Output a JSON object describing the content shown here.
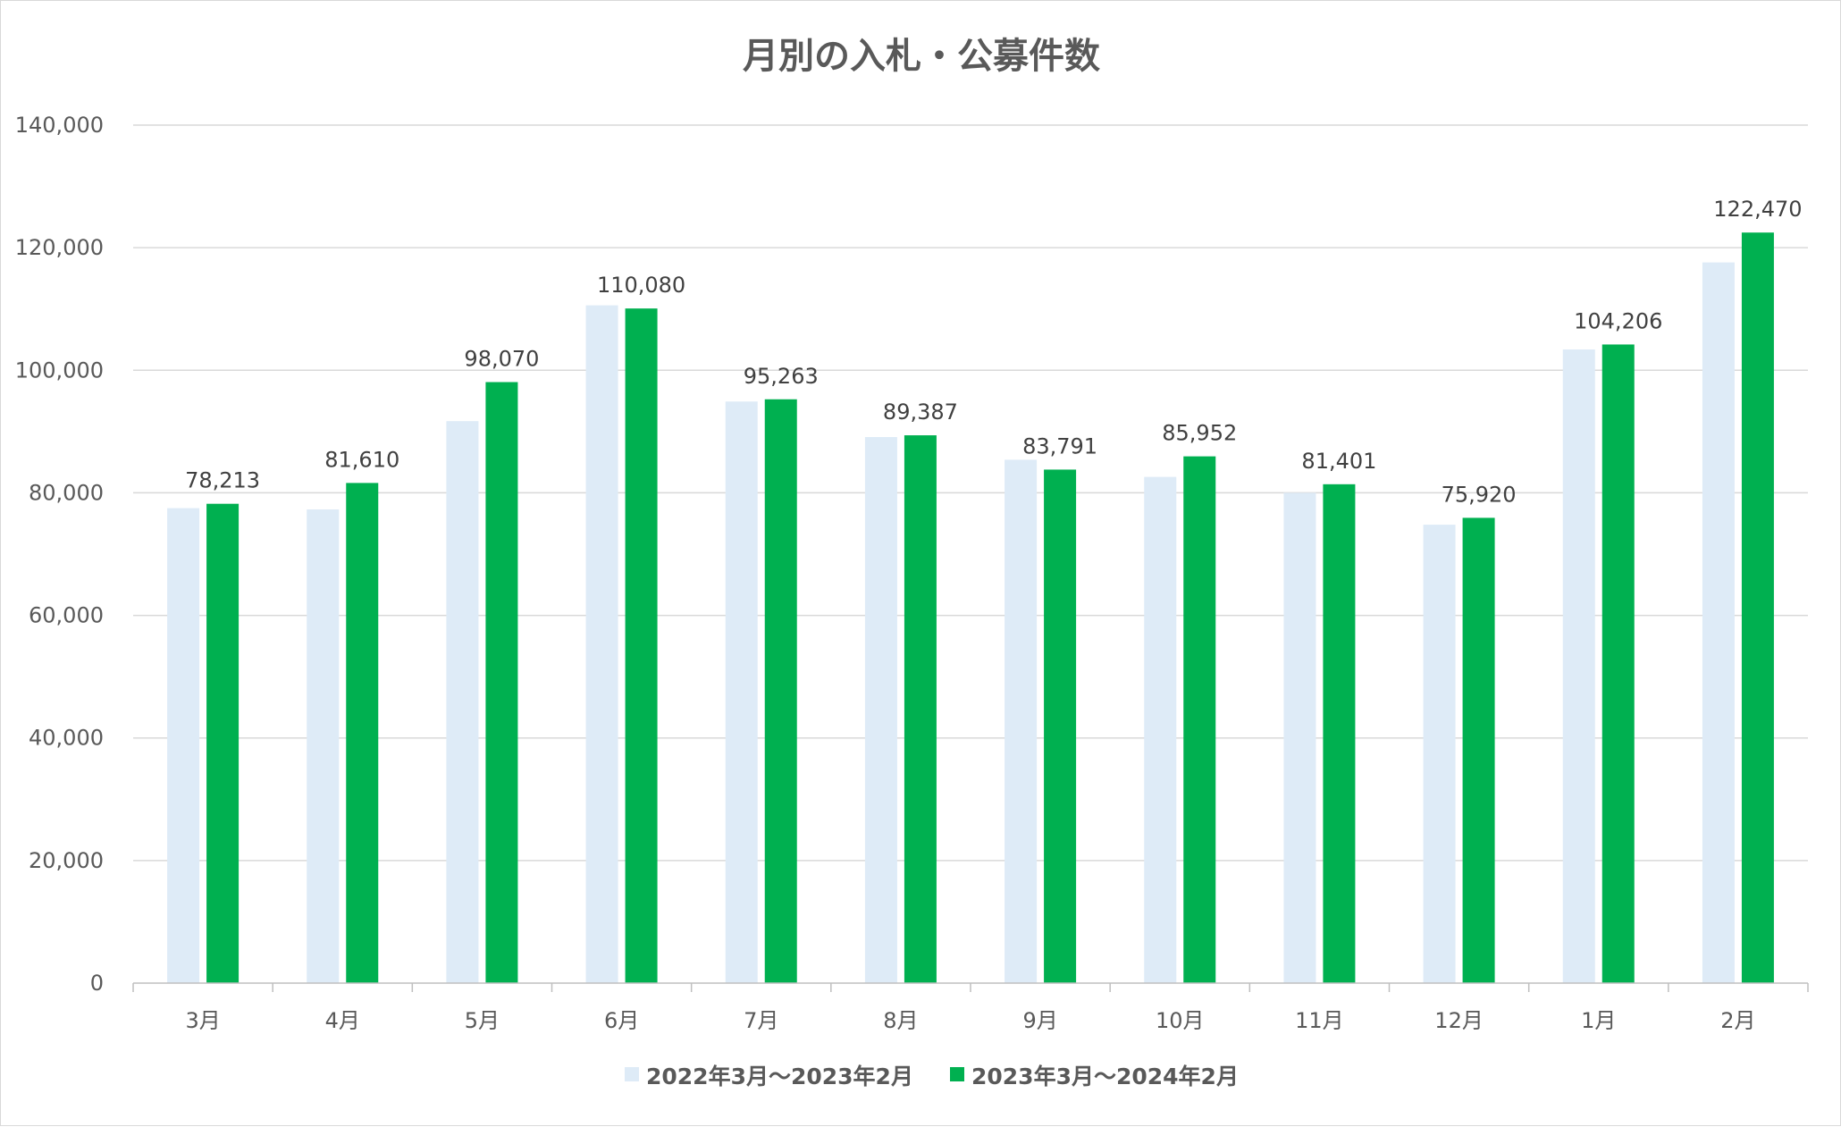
{
  "chart_data": {
    "type": "bar",
    "title": "月別の入札・公募件数",
    "xlabel": "",
    "ylabel": "",
    "ylim": [
      0,
      140000
    ],
    "yticks": [
      0,
      20000,
      40000,
      60000,
      80000,
      100000,
      120000,
      140000
    ],
    "ytick_labels": [
      "0",
      "20,000",
      "40,000",
      "60,000",
      "80,000",
      "100,000",
      "120,000",
      "140,000"
    ],
    "grid": true,
    "legend_position": "bottom",
    "categories": [
      "3月",
      "4月",
      "5月",
      "6月",
      "7月",
      "8月",
      "9月",
      "10月",
      "11月",
      "12月",
      "1月",
      "2月"
    ],
    "series": [
      {
        "name": "2022年3月～2023年2月",
        "color": "#deebf7",
        "values": [
          77500,
          77300,
          91700,
          110600,
          94900,
          89100,
          85400,
          82600,
          80000,
          74800,
          103400,
          117600
        ]
      },
      {
        "name": "2023年3月～2024年2月",
        "color": "#00b050",
        "values": [
          78213,
          81610,
          98070,
          110080,
          95263,
          89387,
          83791,
          85952,
          81401,
          75920,
          104206,
          122470
        ],
        "data_labels": [
          "78,213",
          "81,610",
          "98,070",
          "110,080",
          "95,263",
          "89,387",
          "83,791",
          "85,952",
          "81,401",
          "75,920",
          "104,206",
          "122,470"
        ]
      }
    ],
    "colors": {
      "gridline": "#d9d9d9",
      "axis": "#bfbfbf",
      "text": "#595959"
    }
  }
}
